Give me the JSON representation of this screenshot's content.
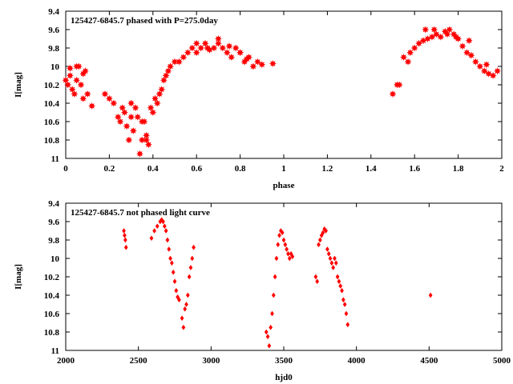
{
  "chart_data": [
    {
      "type": "scatter",
      "title": "125427-6845.7 phased with P=275.0day",
      "xlabel": "phase",
      "ylabel": "I[mag]",
      "xlim": [
        0,
        2
      ],
      "ylim": [
        11,
        9.4
      ],
      "y_inverted": true,
      "grid": false,
      "legend": "none",
      "marker": "star",
      "color": "#ff0000",
      "xticks": [
        "0",
        "0.2",
        "0.4",
        "0.6",
        "0.8",
        "1",
        "1.2",
        "1.4",
        "1.6",
        "1.8",
        "2"
      ],
      "yticks": [
        "9.4",
        "9.6",
        "9.8",
        "10",
        "10.2",
        "10.4",
        "10.6",
        "10.8",
        "11"
      ],
      "x": [
        0.0,
        0.01,
        0.02,
        0.03,
        0.04,
        0.05,
        0.06,
        0.07,
        0.08,
        0.09,
        0.1,
        0.12,
        0.18,
        0.2,
        0.22,
        0.24,
        0.25,
        0.26,
        0.27,
        0.28,
        0.29,
        0.3,
        0.31,
        0.32,
        0.33,
        0.34,
        0.35,
        0.36,
        0.37,
        0.38,
        0.39,
        0.4,
        0.41,
        0.42,
        0.43,
        0.44,
        0.45,
        0.46,
        0.47,
        0.48,
        0.5,
        0.52,
        0.54,
        0.56,
        0.58,
        0.6,
        0.62,
        0.64,
        0.66,
        0.68,
        0.7,
        0.72,
        0.74,
        0.76,
        0.78,
        0.8,
        0.82,
        0.84,
        0.86,
        0.88,
        0.9,
        0.95,
        0.02,
        0.05,
        0.08,
        0.3,
        0.35,
        0.37,
        0.6,
        0.65,
        0.7,
        0.75,
        0.8,
        0.83,
        1.5,
        1.52,
        1.55,
        1.58,
        1.6,
        1.62,
        1.64,
        1.66,
        1.68,
        1.7,
        1.72,
        1.74,
        1.76,
        1.78,
        1.8,
        1.82,
        1.84,
        1.86,
        1.88,
        1.9,
        1.92,
        1.94,
        1.96,
        1.98,
        1.53,
        1.57,
        1.65,
        1.69,
        1.75,
        1.79,
        1.85,
        1.93
      ],
      "y": [
        10.15,
        10.2,
        10.1,
        10.25,
        10.3,
        10.15,
        10.0,
        10.2,
        10.35,
        10.05,
        10.3,
        10.43,
        10.3,
        10.35,
        10.4,
        10.55,
        10.6,
        10.45,
        10.5,
        10.65,
        10.8,
        10.55,
        10.7,
        10.45,
        10.55,
        10.95,
        10.8,
        10.6,
        10.75,
        10.85,
        10.45,
        10.5,
        10.35,
        10.4,
        10.3,
        10.25,
        10.15,
        10.1,
        10.05,
        10.0,
        9.95,
        9.95,
        9.9,
        9.85,
        9.8,
        9.85,
        9.8,
        9.75,
        9.82,
        9.8,
        9.75,
        9.8,
        9.85,
        9.9,
        9.8,
        9.85,
        9.95,
        9.9,
        10.0,
        9.95,
        9.98,
        9.97,
        10.02,
        10.0,
        10.08,
        10.4,
        10.6,
        10.8,
        9.75,
        9.8,
        9.7,
        9.78,
        9.85,
        9.92,
        10.3,
        10.2,
        9.9,
        9.85,
        9.8,
        9.75,
        9.72,
        9.7,
        9.68,
        9.65,
        9.68,
        9.62,
        9.6,
        9.65,
        9.7,
        9.78,
        9.85,
        9.88,
        9.95,
        10.0,
        10.05,
        10.08,
        10.1,
        10.05,
        10.2,
        9.95,
        9.6,
        9.6,
        9.65,
        9.68,
        9.72,
        9.98
      ]
    },
    {
      "type": "scatter",
      "title": "125427-6845.7 not phased light curve",
      "xlabel": "hjd0",
      "ylabel": "I[mag]",
      "xlim": [
        2000,
        5000
      ],
      "ylim": [
        11,
        9.4
      ],
      "y_inverted": true,
      "grid": false,
      "legend": "none",
      "marker": "diamond",
      "color": "#ff0000",
      "xticks": [
        "2000",
        "2500",
        "3000",
        "3500",
        "4000",
        "4500",
        "5000"
      ],
      "yticks": [
        "9.4",
        "9.6",
        "9.8",
        "10",
        "10.2",
        "10.4",
        "10.6",
        "10.8",
        "11"
      ],
      "x": [
        2400,
        2405,
        2410,
        2415,
        2590,
        2610,
        2630,
        2650,
        2660,
        2670,
        2680,
        2690,
        2700,
        2710,
        2720,
        2730,
        2740,
        2750,
        2760,
        2770,
        2780,
        2800,
        2810,
        2820,
        2830,
        2840,
        2850,
        2860,
        2870,
        2880,
        3380,
        3390,
        3400,
        3410,
        3420,
        3430,
        3440,
        3450,
        3460,
        3470,
        3480,
        3490,
        3500,
        3510,
        3520,
        3530,
        3540,
        3550,
        3560,
        3720,
        3730,
        3740,
        3750,
        3760,
        3770,
        3780,
        3790,
        3800,
        3810,
        3820,
        3830,
        3840,
        3850,
        3860,
        3870,
        3880,
        3890,
        3900,
        3910,
        3920,
        3930,
        3940,
        4510
      ],
      "y": [
        9.7,
        9.75,
        9.8,
        9.88,
        9.78,
        9.7,
        9.65,
        9.6,
        9.58,
        9.6,
        9.65,
        9.7,
        9.8,
        9.9,
        10.0,
        10.05,
        10.15,
        10.25,
        10.35,
        10.42,
        10.45,
        10.65,
        10.75,
        10.55,
        10.5,
        10.4,
        10.2,
        10.1,
        10.0,
        9.88,
        10.8,
        10.85,
        10.95,
        10.75,
        10.6,
        10.4,
        10.2,
        10.0,
        9.85,
        9.75,
        9.7,
        9.72,
        9.8,
        9.85,
        9.9,
        9.95,
        10.0,
        9.95,
        9.98,
        10.2,
        10.25,
        9.85,
        9.8,
        9.75,
        9.72,
        9.68,
        9.7,
        9.9,
        9.95,
        10.0,
        10.05,
        10.1,
        10.0,
        10.05,
        10.2,
        10.25,
        10.3,
        10.35,
        10.45,
        10.5,
        10.6,
        10.72,
        10.4
      ]
    }
  ]
}
